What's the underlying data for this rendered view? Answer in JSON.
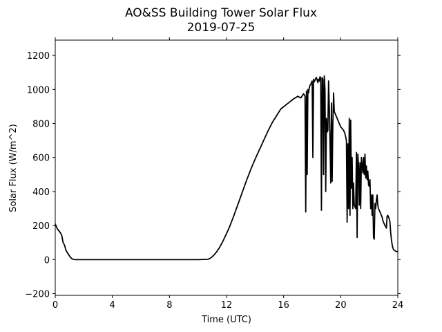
{
  "chart_data": {
    "type": "line",
    "title": "AO&SS Building Tower Solar Flux",
    "subtitle": "2019-07-25",
    "xlabel": "Time (UTC)",
    "ylabel": "Solar Flux (W/m^2)",
    "xlim": [
      0,
      24
    ],
    "ylim": [
      -210,
      1290
    ],
    "x_ticks": [
      0,
      4,
      8,
      12,
      16,
      20,
      24
    ],
    "x_tick_labels": [
      "0",
      "4",
      "8",
      "12",
      "16",
      "20",
      "24"
    ],
    "y_ticks": [
      -200,
      0,
      200,
      400,
      600,
      800,
      1000,
      1200
    ],
    "y_tick_labels": [
      "−200",
      "0",
      "200",
      "400",
      "600",
      "800",
      "1000",
      "1200"
    ],
    "grid": false,
    "legend": "none",
    "line_color": "#000000",
    "series": [
      {
        "x": [
          0,
          0.15,
          0.3,
          0.45,
          0.55,
          0.65,
          0.75,
          0.85,
          0.95,
          1.05,
          1.15,
          1.25,
          1.4,
          2,
          4,
          6,
          8,
          10,
          10.7,
          10.9,
          11.1,
          11.3,
          11.5,
          11.7,
          11.9,
          12.2,
          12.5,
          12.8,
          13.1,
          13.4,
          13.7,
          14,
          14.3,
          14.6,
          14.9,
          15.2,
          15.5,
          15.8,
          16.1,
          16.4,
          16.7,
          17,
          17.2,
          17.4,
          17.5,
          17.55,
          17.6,
          17.65,
          17.7,
          17.75,
          17.8,
          17.85,
          17.9,
          17.95,
          18,
          18.05,
          18.1,
          18.15,
          18.2,
          18.25,
          18.3,
          18.35,
          18.4,
          18.45,
          18.5,
          18.55,
          18.6,
          18.65,
          18.7,
          18.75,
          18.8,
          18.85,
          18.9,
          18.95,
          19,
          19.05,
          19.1,
          19.15,
          19.2,
          19.25,
          19.3,
          19.35,
          19.4,
          19.45,
          19.5,
          19.55,
          19.6,
          19.65,
          19.7,
          19.75,
          19.8,
          19.85,
          19.9,
          19.95,
          20,
          20.1,
          20.2,
          20.3,
          20.4,
          20.45,
          20.5,
          20.55,
          20.6,
          20.65,
          20.7,
          20.75,
          20.8,
          20.85,
          20.9,
          20.95,
          21,
          21.05,
          21.1,
          21.15,
          21.2,
          21.25,
          21.3,
          21.35,
          21.4,
          21.45,
          21.5,
          21.55,
          21.6,
          21.65,
          21.7,
          21.75,
          21.8,
          21.85,
          21.9,
          21.95,
          22,
          22.05,
          22.1,
          22.15,
          22.2,
          22.25,
          22.3,
          22.35,
          22.4,
          22.45,
          22.5,
          22.55,
          22.6,
          22.65,
          22.7,
          22.75,
          22.8,
          22.85,
          22.9,
          22.95,
          23,
          23.05,
          23.1,
          23.15,
          23.2,
          23.25,
          23.3,
          23.35,
          23.4,
          23.45,
          23.5,
          23.55,
          23.6,
          23.65,
          23.7,
          23.75,
          23.8,
          23.85,
          23.9,
          23.95,
          24
        ],
        "y": [
          210,
          180,
          165,
          145,
          100,
          85,
          55,
          40,
          28,
          15,
          6,
          2,
          0,
          0,
          0,
          0,
          0,
          0,
          2,
          10,
          25,
          45,
          70,
          100,
          135,
          190,
          255,
          325,
          395,
          465,
          530,
          590,
          645,
          700,
          755,
          805,
          845,
          885,
          905,
          925,
          945,
          960,
          950,
          975,
          960,
          280,
          990,
          500,
          1000,
          980,
          1010,
          1025,
          1030,
          1040,
          1050,
          600,
          1060,
          1045,
          1055,
          1065,
          1070,
          1055,
          1040,
          1060,
          1050,
          1075,
          1065,
          290,
          1070,
          1060,
          500,
          1080,
          1000,
          400,
          830,
          750,
          760,
          1050,
          900,
          700,
          450,
          920,
          460,
          800,
          980,
          870,
          860,
          850,
          840,
          830,
          820,
          810,
          800,
          790,
          780,
          770,
          760,
          740,
          700,
          220,
          680,
          300,
          830,
          260,
          820,
          420,
          600,
          300,
          450,
          320,
          310,
          300,
          630,
          130,
          620,
          550,
          320,
          570,
          300,
          600,
          560,
          510,
          600,
          500,
          620,
          480,
          550,
          470,
          520,
          440,
          430,
          470,
          300,
          380,
          260,
          380,
          130,
          120,
          330,
          300,
          350,
          380,
          320,
          300,
          290,
          280,
          270,
          260,
          250,
          230,
          220,
          210,
          200,
          195,
          185,
          255,
          260,
          250,
          240,
          220,
          160,
          120,
          90,
          70,
          60,
          55,
          52,
          50,
          48,
          47,
          46
        ]
      }
    ]
  }
}
